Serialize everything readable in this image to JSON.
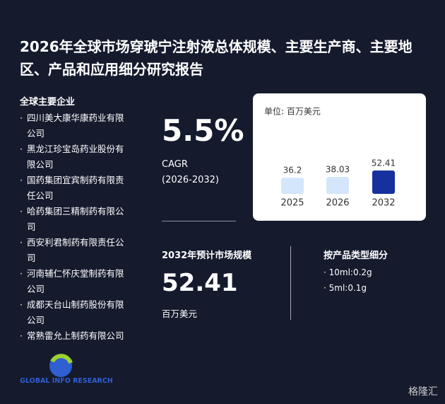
{
  "header": {
    "title": "2026年全球市场穿琥宁注射液总体规模、主要生产商、主要地区、产品和应用细分研究报告"
  },
  "companies": {
    "title": "全球主要企业",
    "items": [
      "四川美大康华康药业有限公司",
      "黑龙江珍宝岛药业股份有限公司",
      "国药集团宜宾制药有限责任公司",
      "哈药集团三精制药有限公司",
      "西安利君制药有限责任公司",
      "河南辅仁怀庆堂制药有限公司",
      "成都天台山制药股份有限公司",
      "常熟雷允上制药有限公司"
    ]
  },
  "cagr": {
    "value": "5.5%",
    "label": "CAGR",
    "period": "(2026-2032)"
  },
  "chart_data": {
    "type": "bar",
    "unit": "单位: 百万美元",
    "categories": [
      "2025",
      "2026",
      "2032"
    ],
    "values": [
      36.2,
      38.03,
      52.41
    ],
    "colors": [
      "#d3e6fb",
      "#d3e6fb",
      "#16309e"
    ]
  },
  "forecast": {
    "title": "2032年预计市场规模",
    "value": "52.41",
    "unit": "百万美元"
  },
  "segments": {
    "title": "按产品类型细分",
    "items": [
      "10ml:0.2g",
      "5ml:0.1g"
    ]
  },
  "logo": {
    "text": "GLOBAL INFO RESEARCH"
  },
  "watermark": {
    "text": "格隆汇"
  }
}
